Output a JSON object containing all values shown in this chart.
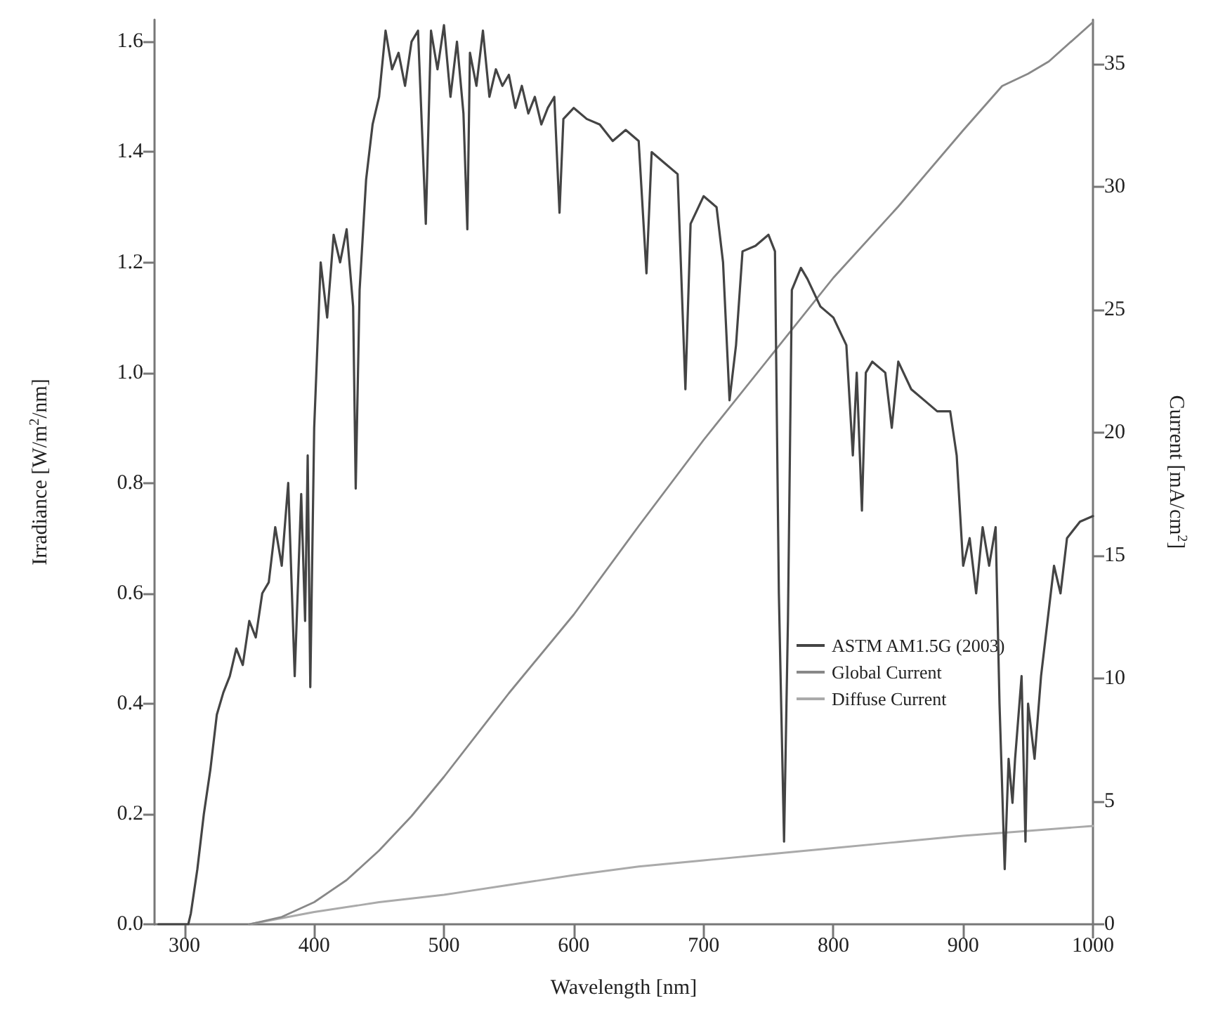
{
  "chart_data": {
    "type": "line",
    "xlabel": "Wavelength [nm]",
    "ylabel": "Irradiance [W/m$^{2}$/nm]",
    "y2label": "Current [mA/cm$^{2}$]",
    "xlim": [
      277,
      1000
    ],
    "xticks": [
      300,
      400,
      500,
      600,
      700,
      800,
      900,
      1000
    ],
    "ylim": [
      0,
      1.64
    ],
    "yticks": [
      {
        "value": 0,
        "label": "0.0"
      },
      0.2,
      0.4,
      0.6,
      0.8,
      {
        "value": 1,
        "label": "1.0"
      },
      1.2,
      1.4,
      1.6
    ],
    "y2lim": [
      0,
      36.8
    ],
    "y2ticks": [
      0,
      5,
      10,
      15,
      20,
      25,
      30,
      35
    ],
    "grid": false,
    "legend": "center",
    "marker": "none",
    "line_style": "solid",
    "series": [
      {
        "name": "ASTM AM1.5G (2003)",
        "color": "#444444",
        "x": [
          280,
          303,
          305,
          310,
          315,
          320,
          325,
          330,
          335,
          340,
          345,
          350,
          355,
          360,
          365,
          370,
          375,
          380,
          385,
          390,
          393,
          395,
          397,
          400,
          405,
          410,
          415,
          420,
          425,
          430,
          432,
          435,
          440,
          445,
          450,
          455,
          460,
          465,
          470,
          475,
          480,
          486,
          490,
          495,
          500,
          505,
          510,
          515,
          518,
          520,
          525,
          530,
          535,
          540,
          545,
          550,
          555,
          560,
          565,
          570,
          575,
          580,
          585,
          589,
          592,
          600,
          610,
          620,
          630,
          640,
          650,
          656,
          660,
          670,
          680,
          686,
          690,
          700,
          710,
          715,
          720,
          725,
          730,
          740,
          750,
          755,
          758,
          762,
          765,
          768,
          775,
          780,
          790,
          800,
          810,
          815,
          818,
          822,
          825,
          830,
          840,
          845,
          850,
          860,
          870,
          880,
          890,
          895,
          900,
          905,
          910,
          915,
          920,
          925,
          928,
          932,
          935,
          938,
          940,
          945,
          948,
          950,
          955,
          960,
          965,
          970,
          975,
          980,
          990,
          1000
        ],
        "values": [
          0,
          0,
          0.02,
          0.1,
          0.2,
          0.28,
          0.38,
          0.42,
          0.45,
          0.5,
          0.47,
          0.55,
          0.52,
          0.6,
          0.62,
          0.72,
          0.65,
          0.8,
          0.45,
          0.78,
          0.55,
          0.85,
          0.43,
          0.9,
          1.2,
          1.1,
          1.25,
          1.2,
          1.26,
          1.12,
          0.79,
          1.15,
          1.35,
          1.45,
          1.5,
          1.62,
          1.55,
          1.58,
          1.52,
          1.6,
          1.62,
          1.27,
          1.62,
          1.55,
          1.63,
          1.5,
          1.6,
          1.47,
          1.26,
          1.58,
          1.52,
          1.62,
          1.5,
          1.55,
          1.52,
          1.54,
          1.48,
          1.52,
          1.47,
          1.5,
          1.45,
          1.48,
          1.5,
          1.29,
          1.46,
          1.48,
          1.46,
          1.45,
          1.42,
          1.44,
          1.42,
          1.18,
          1.4,
          1.38,
          1.36,
          0.97,
          1.27,
          1.32,
          1.3,
          1.2,
          0.95,
          1.05,
          1.22,
          1.23,
          1.25,
          1.22,
          0.6,
          0.15,
          0.55,
          1.15,
          1.19,
          1.17,
          1.12,
          1.1,
          1.05,
          0.85,
          1,
          0.75,
          1,
          1.02,
          1,
          0.9,
          1.02,
          0.97,
          0.95,
          0.93,
          0.93,
          0.85,
          0.65,
          0.7,
          0.6,
          0.72,
          0.65,
          0.72,
          0.4,
          0.1,
          0.3,
          0.22,
          0.3,
          0.45,
          0.15,
          0.4,
          0.3,
          0.45,
          0.55,
          0.65,
          0.6,
          0.7,
          0.73,
          0.74
        ]
      },
      {
        "name": "Global Current",
        "color": "#888888",
        "axis": "y2",
        "x": [
          350,
          375,
          400,
          425,
          450,
          475,
          500,
          550,
          600,
          650,
          700,
          750,
          800,
          850,
          900,
          930,
          950,
          966,
          1000
        ],
        "values": [
          0,
          0.3,
          0.9,
          1.8,
          3,
          4.4,
          6,
          9.4,
          12.6,
          16.2,
          19.7,
          23,
          26.3,
          29.2,
          32.3,
          34.1,
          34.6,
          35.1,
          36.7
        ]
      },
      {
        "name": "Diffuse Current",
        "color": "#aaaaaa",
        "axis": "y2",
        "x": [
          350,
          400,
          450,
          500,
          550,
          600,
          650,
          700,
          750,
          800,
          850,
          900,
          950,
          1000
        ],
        "values": [
          0,
          0.5,
          0.9,
          1.2,
          1.6,
          2,
          2.35,
          2.6,
          2.85,
          3.1,
          3.35,
          3.6,
          3.8,
          4
        ]
      }
    ]
  }
}
